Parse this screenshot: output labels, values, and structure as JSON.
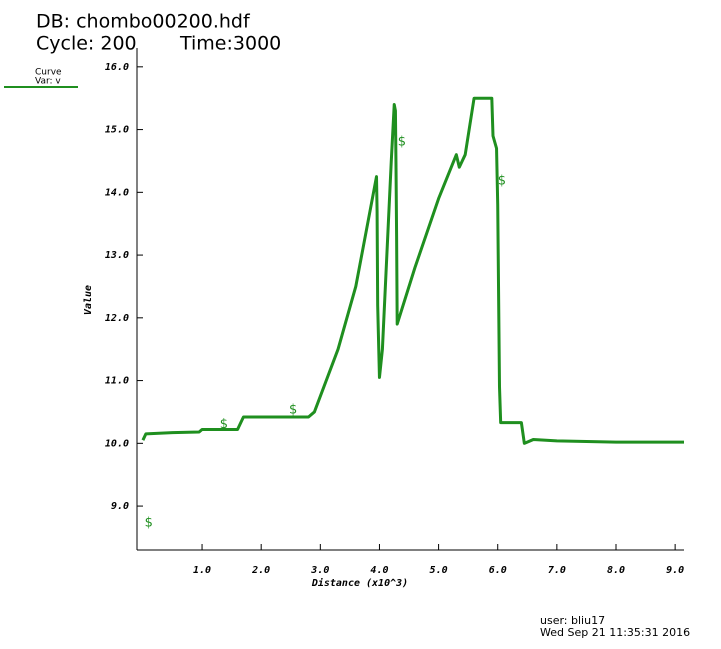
{
  "header": {
    "db": "DB: chombo00200.hdf",
    "cycle": "Cycle: 200",
    "time": "Time:3000"
  },
  "footer": {
    "user": "user: bliu17",
    "date": "Wed Sep 21 11:35:31 2016"
  },
  "chart_data": {
    "type": "line",
    "x_label": "Distance (x10^3)",
    "y_label": "Value",
    "legend_title": "Curve",
    "x": [
      0.0,
      0.05,
      0.5,
      0.95,
      1.0,
      1.6,
      1.7,
      2.8,
      2.9,
      3.3,
      3.6,
      3.95,
      3.96,
      3.97,
      4.0,
      4.05,
      4.2,
      4.25,
      4.27,
      4.28,
      4.29,
      4.3,
      4.6,
      5.0,
      5.3,
      5.35,
      5.45,
      5.6,
      5.9,
      5.92,
      5.98,
      6.0,
      6.03,
      6.05,
      6.4,
      6.45,
      6.6,
      7.0,
      8.0,
      9.15
    ],
    "series": [
      {
        "name": "Var: v",
        "color": "#1f8f1f",
        "values": [
          10.05,
          10.15,
          10.17,
          10.18,
          10.22,
          10.22,
          10.42,
          10.42,
          10.5,
          11.5,
          12.5,
          14.25,
          13.7,
          12.2,
          11.05,
          11.5,
          14.5,
          15.4,
          15.3,
          14.4,
          13.3,
          11.9,
          12.8,
          13.9,
          14.6,
          14.4,
          14.6,
          15.5,
          15.5,
          14.9,
          14.7,
          13.8,
          10.9,
          10.33,
          10.33,
          10.0,
          10.06,
          10.04,
          10.02,
          10.02
        ]
      }
    ],
    "markers": {
      "symbol": "$",
      "x": [
        0.1,
        1.37,
        2.54,
        4.38,
        6.07
      ],
      "y": [
        8.73,
        10.3,
        10.53,
        14.8,
        14.18
      ]
    },
    "xlim": [
      -0.1,
      9.15
    ],
    "ylim": [
      8.3,
      16.3
    ],
    "xticks": [
      {
        "value": 1,
        "label": "1.0"
      },
      {
        "value": 2,
        "label": "2.0"
      },
      {
        "value": 3,
        "label": "3.0"
      },
      {
        "value": 4,
        "label": "4.0"
      },
      {
        "value": 5,
        "label": "5.0"
      },
      {
        "value": 6,
        "label": "6.0"
      },
      {
        "value": 7,
        "label": "7.0"
      },
      {
        "value": 8,
        "label": "8.0"
      },
      {
        "value": 9,
        "label": "9.0"
      }
    ],
    "yticks": [
      {
        "value": 9,
        "label": "9.0"
      },
      {
        "value": 10,
        "label": "10.0"
      },
      {
        "value": 11,
        "label": "11.0"
      },
      {
        "value": 12,
        "label": "12.0"
      },
      {
        "value": 13,
        "label": "13.0"
      },
      {
        "value": 14,
        "label": "14.0"
      },
      {
        "value": 15,
        "label": "15.0"
      },
      {
        "value": 16,
        "label": "16.0"
      }
    ]
  }
}
